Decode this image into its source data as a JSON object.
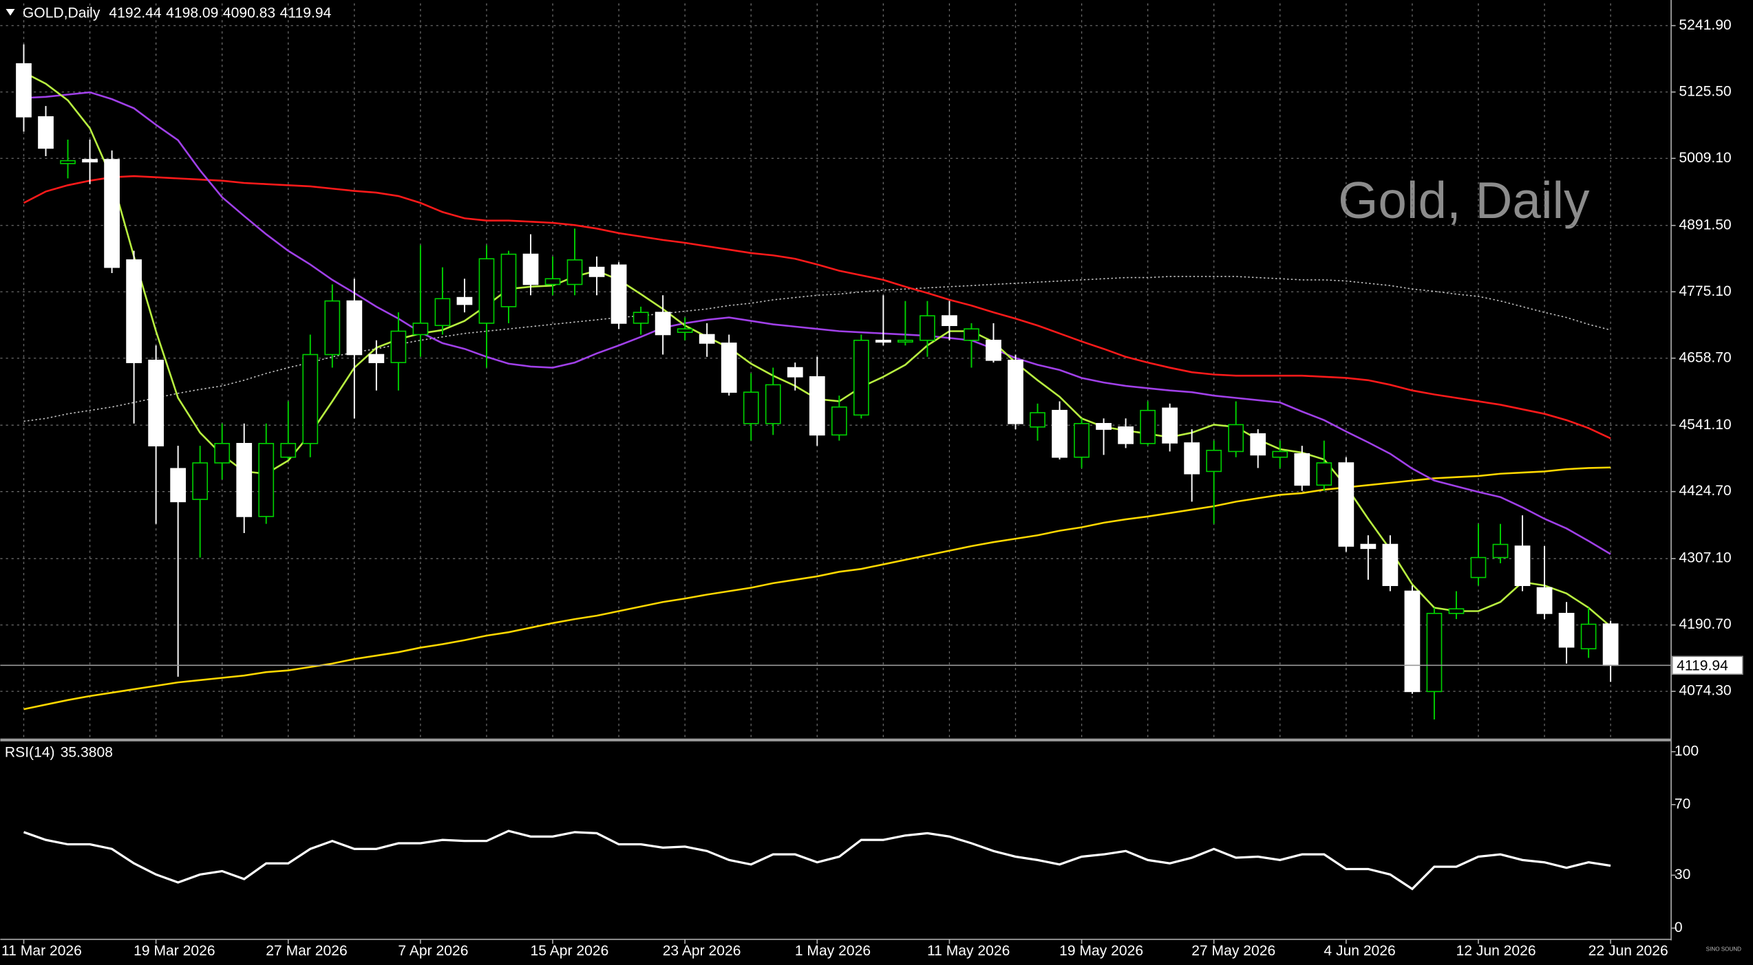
{
  "chart_data": [
    {
      "type": "candlestick",
      "title": "GOLD,Daily",
      "watermark": "Gold, Daily",
      "brand": "SINO SOUND",
      "categories": [
        "11 Mar 2026",
        null,
        null,
        null,
        null,
        null,
        "19 Mar 2026",
        null,
        null,
        null,
        null,
        null,
        "27 Mar 2026",
        null,
        null,
        null,
        null,
        null,
        "7 Apr 2026",
        null,
        null,
        null,
        null,
        null,
        "15 Apr 2026",
        null,
        null,
        null,
        null,
        null,
        "23 Apr 2026",
        null,
        null,
        null,
        null,
        null,
        "1 May 2026",
        null,
        null,
        null,
        null,
        null,
        "11 May 2026",
        null,
        null,
        null,
        null,
        null,
        "19 May 2026",
        null,
        null,
        null,
        null,
        null,
        "27 May 2026",
        null,
        null,
        null,
        null,
        null,
        "4 Jun 2026",
        null,
        null,
        null,
        null,
        null,
        "12 Jun 2026",
        null,
        null,
        null,
        null,
        null,
        "22 Jun 2026"
      ],
      "open": [
        5175,
        5082,
        5000,
        5007,
        5007,
        4831,
        4655,
        4465,
        4411,
        4475,
        4509,
        4381,
        4485,
        4509,
        4665,
        4759,
        4665,
        4651,
        4700,
        4716,
        4765,
        4720,
        4749,
        4841,
        4788,
        4788,
        4818,
        4822,
        4720,
        4739,
        4704,
        4700,
        4685,
        4544,
        4544,
        4642,
        4626,
        4524,
        4559,
        4690,
        4687,
        4690,
        4733,
        4690,
        4690,
        4655,
        4538,
        4567,
        4485,
        4544,
        4538,
        4509,
        4571,
        4510,
        4460,
        4495,
        4526,
        4485,
        4491,
        4436,
        4475,
        4332,
        4332,
        4250,
        4074,
        4211,
        4274,
        4309,
        4329,
        4256,
        4211,
        4149,
        4192.44
      ],
      "high": [
        5209,
        5101,
        5042,
        5042,
        5023,
        4847,
        4681,
        4505,
        4505,
        4544,
        4544,
        4544,
        4583,
        4700,
        4788,
        4798,
        4690,
        4739,
        4857,
        4818,
        4798,
        4857,
        4847,
        4876,
        4837,
        4886,
        4837,
        4827,
        4749,
        4769,
        4730,
        4720,
        4700,
        4632,
        4642,
        4651,
        4661,
        4593,
        4700,
        4769,
        4759,
        4759,
        4759,
        4720,
        4720,
        4665,
        4579,
        4583,
        4553,
        4553,
        4553,
        4583,
        4579,
        4534,
        4514,
        4583,
        4534,
        4514,
        4505,
        4514,
        4485,
        4348,
        4348,
        4260,
        4221,
        4250,
        4368,
        4368,
        4383,
        4329,
        4231,
        4221,
        4198.09
      ],
      "low": [
        5056,
        5013,
        4974,
        4964,
        4808,
        4544,
        4368,
        4100,
        4309,
        4446,
        4352,
        4368,
        4481,
        4485,
        4642,
        4553,
        4602,
        4602,
        4661,
        4700,
        4739,
        4642,
        4720,
        4769,
        4769,
        4769,
        4769,
        4710,
        4700,
        4665,
        4690,
        4661,
        4593,
        4514,
        4524,
        4602,
        4505,
        4514,
        4553,
        4681,
        4681,
        4661,
        4690,
        4642,
        4651,
        4534,
        4514,
        4481,
        4466,
        4489,
        4501,
        4505,
        4495,
        4407,
        4368,
        4485,
        4466,
        4466,
        4426,
        4426,
        4319,
        4270,
        4250,
        4070,
        4025,
        4201,
        4260,
        4299,
        4250,
        4201,
        4123,
        4133,
        4090.83
      ],
      "close": [
        5082,
        5027,
        5005,
        5003,
        4818,
        4651,
        4505,
        4407,
        4475,
        4509,
        4381,
        4509,
        4509,
        4665,
        4759,
        4665,
        4651,
        4706,
        4720,
        4763,
        4753,
        4833,
        4841,
        4788,
        4798,
        4831,
        4802,
        4720,
        4739,
        4700,
        4710,
        4685,
        4599,
        4599,
        4612,
        4626,
        4524,
        4573,
        4690,
        4687,
        4690,
        4733,
        4716,
        4710,
        4655,
        4544,
        4563,
        4485,
        4544,
        4534,
        4509,
        4567,
        4510,
        4456,
        4497,
        4542,
        4489,
        4495,
        4436,
        4475,
        4329,
        4325,
        4260,
        4074,
        4211,
        4219,
        4309,
        4332,
        4260,
        4211,
        4152,
        4192,
        4119.94
      ],
      "up_color": "#00d000",
      "down_color": "#ffffff",
      "overlays": [
        {
          "color": "#c0c0c0",
          "style": "dotted",
          "values": [
            4548,
            4553,
            4561,
            4567,
            4573,
            4581,
            4589,
            4597,
            4604,
            4610,
            4620,
            4632,
            4642,
            4651,
            4661,
            4669,
            4675,
            4683,
            4690,
            4696,
            4702,
            4706,
            4710,
            4714,
            4718,
            4722,
            4726,
            4730,
            4733,
            4737,
            4741,
            4745,
            4751,
            4755,
            4761,
            4765,
            4769,
            4771,
            4775,
            4778,
            4780,
            4782,
            4784,
            4786,
            4788,
            4790,
            4792,
            4794,
            4796,
            4798,
            4800,
            4800,
            4802,
            4802,
            4802,
            4802,
            4800,
            4798,
            4796,
            4796,
            4794,
            4790,
            4786,
            4780,
            4776,
            4771,
            4767,
            4759,
            4749,
            4739,
            4730,
            4718,
            4708
          ]
        },
        {
          "color": "#ffd700",
          "style": "solid",
          "values": [
            4043,
            4051,
            4059,
            4066,
            4072,
            4078,
            4084,
            4090,
            4094,
            4098,
            4102,
            4108,
            4111,
            4117,
            4123,
            4131,
            4137,
            4143,
            4151,
            4157,
            4164,
            4172,
            4178,
            4186,
            4194,
            4201,
            4207,
            4215,
            4223,
            4231,
            4237,
            4244,
            4250,
            4256,
            4264,
            4270,
            4276,
            4284,
            4289,
            4297,
            4305,
            4313,
            4321,
            4329,
            4336,
            4342,
            4348,
            4356,
            4362,
            4370,
            4376,
            4381,
            4387,
            4393,
            4399,
            4407,
            4413,
            4419,
            4422,
            4428,
            4432,
            4436,
            4440,
            4444,
            4448,
            4450,
            4452,
            4456,
            4458,
            4460,
            4464,
            4466,
            4467
          ]
        },
        {
          "color": "#ff1a1a",
          "style": "solid",
          "values": [
            4931,
            4951,
            4962,
            4970,
            4976,
            4978,
            4976,
            4974,
            4972,
            4970,
            4966,
            4964,
            4962,
            4960,
            4956,
            4952,
            4949,
            4943,
            4931,
            4915,
            4904,
            4900,
            4900,
            4898,
            4896,
            4892,
            4886,
            4878,
            4872,
            4866,
            4861,
            4855,
            4849,
            4843,
            4839,
            4833,
            4823,
            4812,
            4804,
            4796,
            4784,
            4773,
            4761,
            4751,
            4739,
            4728,
            4716,
            4702,
            4688,
            4675,
            4661,
            4651,
            4642,
            4634,
            4630,
            4628,
            4628,
            4628,
            4628,
            4626,
            4624,
            4620,
            4612,
            4602,
            4595,
            4589,
            4583,
            4577,
            4569,
            4561,
            4550,
            4536,
            4518
          ]
        },
        {
          "color": "#a040e8",
          "style": "solid",
          "values": [
            5115,
            5117,
            5121,
            5125,
            5113,
            5097,
            5068,
            5041,
            4988,
            4941,
            4908,
            4876,
            4847,
            4823,
            4796,
            4773,
            4749,
            4728,
            4704,
            4685,
            4675,
            4661,
            4649,
            4644,
            4642,
            4651,
            4667,
            4681,
            4696,
            4712,
            4720,
            4726,
            4730,
            4724,
            4718,
            4714,
            4710,
            4706,
            4704,
            4702,
            4700,
            4698,
            4694,
            4690,
            4675,
            4659,
            4647,
            4638,
            4624,
            4616,
            4610,
            4606,
            4602,
            4599,
            4593,
            4589,
            4585,
            4581,
            4565,
            4550,
            4530,
            4511,
            4491,
            4465,
            4444,
            4434,
            4424,
            4415,
            4397,
            4377,
            4360,
            4338,
            4315
          ]
        },
        {
          "color": "#b8f040",
          "style": "solid",
          "values": [
            5160,
            5140,
            5111,
            5062,
            4974,
            4837,
            4706,
            4589,
            4528,
            4489,
            4460,
            4456,
            4479,
            4526,
            4583,
            4642,
            4677,
            4692,
            4702,
            4708,
            4724,
            4751,
            4780,
            4784,
            4786,
            4802,
            4812,
            4796,
            4771,
            4745,
            4716,
            4696,
            4677,
            4649,
            4628,
            4610,
            4587,
            4583,
            4608,
            4626,
            4647,
            4681,
            4706,
            4706,
            4687,
            4651,
            4620,
            4591,
            4553,
            4538,
            4532,
            4526,
            4520,
            4528,
            4542,
            4538,
            4516,
            4499,
            4493,
            4481,
            4434,
            4377,
            4323,
            4262,
            4221,
            4215,
            4215,
            4231,
            4266,
            4260,
            4246,
            4221,
            4188
          ]
        }
      ],
      "ylim": [
        3992,
        5281
      ],
      "yticks": [
        {
          "value": 5241.9,
          "label": "5241.90"
        },
        {
          "value": 5125.5,
          "label": "5125.50"
        },
        {
          "value": 5009.1,
          "label": "5009.10"
        },
        {
          "value": 4891.5,
          "label": "4891.50"
        },
        {
          "value": 4775.1,
          "label": "4775.10"
        },
        {
          "value": 4658.7,
          "label": "4658.70"
        },
        {
          "value": 4541.1,
          "label": "4541.10"
        },
        {
          "value": 4424.7,
          "label": "4424.70"
        },
        {
          "value": 4307.1,
          "label": "4307.10"
        },
        {
          "value": 4190.7,
          "label": "4190.70"
        },
        {
          "value": 4074.3,
          "label": "4074.30"
        }
      ],
      "grid": true
    },
    {
      "type": "line",
      "title": "RSI(14)",
      "color": "#ffffff",
      "values": [
        54.4,
        50,
        47.5,
        47.5,
        44.9,
        36.7,
        30.4,
        25.9,
        30.4,
        32.3,
        27.8,
        36.7,
        36.7,
        44.9,
        49.4,
        44.9,
        44.9,
        48.1,
        48.1,
        50,
        49.4,
        49.4,
        55.1,
        51.9,
        51.9,
        54.4,
        53.8,
        47.5,
        47.5,
        45.6,
        46.2,
        43.7,
        38.6,
        36.1,
        41.8,
        41.8,
        37.3,
        40.5,
        50,
        50,
        52.5,
        53.8,
        51.9,
        48.1,
        43.7,
        40.5,
        38.6,
        36.1,
        40.5,
        41.8,
        43.7,
        38.6,
        36.7,
        39.9,
        44.9,
        39.9,
        40.5,
        38.6,
        41.8,
        41.8,
        33.5,
        33.5,
        30.4,
        22.2,
        34.8,
        34.8,
        40.5,
        41.8,
        38.6,
        37.3,
        34.2,
        37.3,
        35.3808
      ],
      "ylim": [
        -5.7,
        105.7
      ],
      "yticks": [
        0,
        30,
        70,
        100
      ],
      "grid": false
    }
  ]
}
